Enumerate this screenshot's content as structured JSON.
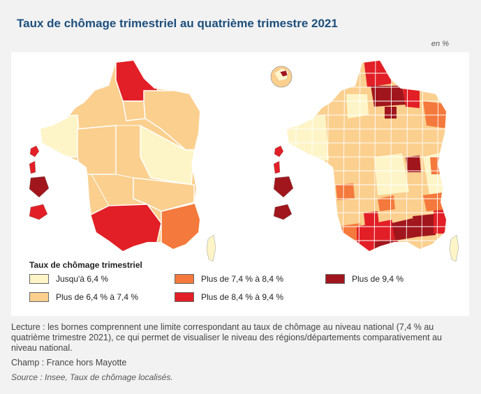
{
  "title": "Taux de chômage trimestriel au quatrième trimestre 2021",
  "unit": "en %",
  "legend": {
    "title": "Taux de chômage trimestriel",
    "items": [
      {
        "label": "Jusqu'à 6,4 %",
        "color": "#fdf5c7"
      },
      {
        "label": "Plus de 6,4 % à 7,4 %",
        "color": "#fbcf8e"
      },
      {
        "label": "Plus de 7,4 % à 8,4 %",
        "color": "#f4793c"
      },
      {
        "label": "Plus de 8,4 % à 9,4 %",
        "color": "#e21f26"
      },
      {
        "label": "Plus de 9,4 %",
        "color": "#a1161d"
      }
    ]
  },
  "maps": [
    {
      "name": "regions",
      "level": "région"
    },
    {
      "name": "departements",
      "level": "département"
    }
  ],
  "notes": {
    "lecture": "Lecture : les bornes comprennent une limite correspondant au taux de chômage au niveau national (7,4 % au quatrième trimestre 2021), ce qui permet de visualiser le niveau des régions/départements comparativement au niveau national.",
    "champ": "Champ : France hors Mayotte",
    "source": "Source : Insee, Taux de chômage localisés."
  }
}
